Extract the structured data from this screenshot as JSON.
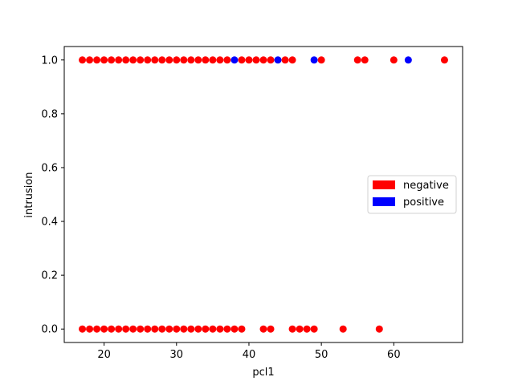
{
  "chart_data": {
    "type": "scatter",
    "xlabel": "pcl1",
    "ylabel": "intrusion",
    "xlim": [
      14.5,
      69.5
    ],
    "ylim": [
      -0.05,
      1.05
    ],
    "xticks": [
      20,
      30,
      40,
      50,
      60
    ],
    "yticks": [
      0.0,
      0.2,
      0.4,
      0.6,
      0.8,
      1.0
    ],
    "ytick_labels": [
      "0.0",
      "0.2",
      "0.4",
      "0.6",
      "0.8",
      "1.0"
    ],
    "grid": false,
    "legend_position": "center-right",
    "series": [
      {
        "name": "negative",
        "color": "#ff0000",
        "points": [
          [
            17,
            1
          ],
          [
            18,
            1
          ],
          [
            19,
            1
          ],
          [
            20,
            1
          ],
          [
            21,
            1
          ],
          [
            22,
            1
          ],
          [
            23,
            1
          ],
          [
            24,
            1
          ],
          [
            25,
            1
          ],
          [
            26,
            1
          ],
          [
            27,
            1
          ],
          [
            28,
            1
          ],
          [
            29,
            1
          ],
          [
            30,
            1
          ],
          [
            31,
            1
          ],
          [
            32,
            1
          ],
          [
            33,
            1
          ],
          [
            34,
            1
          ],
          [
            35,
            1
          ],
          [
            36,
            1
          ],
          [
            37,
            1
          ],
          [
            39,
            1
          ],
          [
            40,
            1
          ],
          [
            41,
            1
          ],
          [
            42,
            1
          ],
          [
            43,
            1
          ],
          [
            45,
            1
          ],
          [
            46,
            1
          ],
          [
            50,
            1
          ],
          [
            55,
            1
          ],
          [
            56,
            1
          ],
          [
            60,
            1
          ],
          [
            67,
            1
          ],
          [
            17,
            0
          ],
          [
            18,
            0
          ],
          [
            19,
            0
          ],
          [
            20,
            0
          ],
          [
            21,
            0
          ],
          [
            22,
            0
          ],
          [
            23,
            0
          ],
          [
            24,
            0
          ],
          [
            25,
            0
          ],
          [
            26,
            0
          ],
          [
            27,
            0
          ],
          [
            28,
            0
          ],
          [
            29,
            0
          ],
          [
            30,
            0
          ],
          [
            31,
            0
          ],
          [
            32,
            0
          ],
          [
            33,
            0
          ],
          [
            34,
            0
          ],
          [
            35,
            0
          ],
          [
            36,
            0
          ],
          [
            37,
            0
          ],
          [
            38,
            0
          ],
          [
            39,
            0
          ],
          [
            42,
            0
          ],
          [
            43,
            0
          ],
          [
            46,
            0
          ],
          [
            47,
            0
          ],
          [
            48,
            0
          ],
          [
            49,
            0
          ],
          [
            53,
            0
          ],
          [
            58,
            0
          ]
        ]
      },
      {
        "name": "positive",
        "color": "#0000ff",
        "points": [
          [
            38,
            1
          ],
          [
            44,
            1
          ],
          [
            49,
            1
          ],
          [
            62,
            1
          ]
        ]
      }
    ]
  }
}
